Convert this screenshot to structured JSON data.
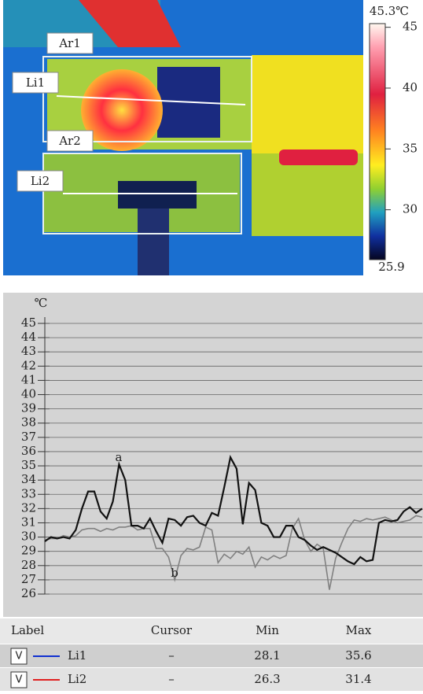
{
  "thermal_image": {
    "labels": [
      "Ar1",
      "Li1",
      "Ar2",
      "Li2"
    ],
    "scale": {
      "top_label": "45.3℃",
      "bottom_label": "25.9",
      "lim": [
        25.9,
        45.3
      ],
      "ticks": [
        45,
        40,
        35,
        30
      ]
    }
  },
  "chart_data": {
    "type": "line",
    "y_unit": "℃",
    "categories": [
      null,
      null,
      null,
      null,
      null,
      null,
      null,
      null,
      null,
      null,
      null,
      null,
      null,
      null,
      null,
      null,
      null,
      null,
      null,
      null,
      null,
      null,
      null,
      null,
      null,
      null,
      null,
      null,
      null,
      null,
      null,
      null,
      null,
      null,
      null,
      null,
      null,
      null,
      null,
      null,
      null,
      null,
      null,
      null,
      null,
      null,
      null,
      null,
      null,
      null,
      null,
      null,
      null,
      null,
      null,
      null,
      null,
      null,
      null,
      null,
      null,
      null
    ],
    "series": [
      {
        "name": "Li1",
        "color": "#111111",
        "values": [
          29.7,
          30.0,
          29.9,
          30.0,
          29.9,
          30.5,
          32.0,
          33.2,
          33.2,
          31.8,
          31.3,
          32.5,
          35.1,
          34.0,
          30.8,
          30.8,
          30.6,
          31.3,
          30.4,
          29.6,
          31.3,
          31.2,
          30.8,
          31.4,
          31.5,
          31.0,
          30.8,
          31.7,
          31.5,
          33.5,
          35.6,
          34.8,
          30.9,
          33.8,
          33.3,
          31.0,
          30.8,
          30.0,
          30.0,
          30.8,
          30.8,
          30.0,
          29.8,
          29.4,
          29.1,
          29.3,
          29.1,
          28.9,
          28.6,
          28.3,
          28.1,
          28.6,
          28.3,
          28.4,
          31.0,
          31.2,
          31.1,
          31.2,
          31.8,
          32.1,
          31.7,
          32.0
        ]
      },
      {
        "name": "Li2",
        "color": "#808080",
        "values": [
          29.8,
          29.9,
          29.9,
          30.1,
          30.0,
          30.1,
          30.5,
          30.6,
          30.6,
          30.4,
          30.6,
          30.5,
          30.7,
          30.7,
          30.8,
          30.5,
          30.6,
          30.6,
          29.2,
          29.2,
          28.6,
          27.0,
          28.7,
          29.2,
          29.1,
          29.3,
          30.7,
          30.5,
          28.2,
          28.8,
          28.5,
          29.0,
          28.8,
          29.3,
          27.9,
          28.6,
          28.4,
          28.7,
          28.5,
          28.7,
          30.6,
          31.3,
          29.8,
          29.0,
          29.5,
          29.2,
          26.3,
          28.5,
          29.6,
          30.6,
          31.2,
          31.1,
          31.3,
          31.2,
          31.3,
          31.4,
          31.2,
          31.0,
          31.1,
          31.2,
          31.5,
          31.4
        ]
      }
    ],
    "annotations": [
      "a",
      "b"
    ],
    "ylim": [
      26,
      45
    ],
    "yticks": [
      26,
      27,
      28,
      29,
      30,
      31,
      32,
      33,
      34,
      35,
      36,
      37,
      38,
      39,
      40,
      41,
      42,
      43,
      44,
      45
    ],
    "grid": true
  },
  "table": {
    "header": [
      "Label",
      "Cursor",
      "Min",
      "Max"
    ],
    "rows": [
      {
        "check": "V",
        "line_color": "#1030d0",
        "cells": [
          "Li1",
          "–",
          "28.1",
          "35.6"
        ]
      },
      {
        "check": "V",
        "line_color": "#e02020",
        "cells": [
          "Li2",
          "–",
          "26.3",
          "31.4"
        ]
      }
    ]
  }
}
